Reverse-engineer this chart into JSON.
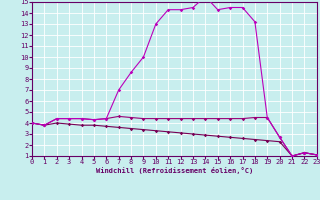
{
  "xlabel": "Windchill (Refroidissement éolien,°C)",
  "xlim": [
    0,
    23
  ],
  "ylim": [
    1,
    15
  ],
  "xticks": [
    0,
    1,
    2,
    3,
    4,
    5,
    6,
    7,
    8,
    9,
    10,
    11,
    12,
    13,
    14,
    15,
    16,
    17,
    18,
    19,
    20,
    21,
    22,
    23
  ],
  "yticks": [
    1,
    2,
    3,
    4,
    5,
    6,
    7,
    8,
    9,
    10,
    11,
    12,
    13,
    14,
    15
  ],
  "bg_color": "#c8eeee",
  "line_color1": "#bb00bb",
  "line_color2": "#990077",
  "line_color3": "#770055",
  "grid_color": "#ffffff",
  "curve1_x": [
    0,
    1,
    2,
    3,
    4,
    5,
    6,
    7,
    8,
    9,
    10,
    11,
    12,
    13,
    14,
    15,
    16,
    17,
    18,
    19,
    20,
    21,
    22,
    23
  ],
  "curve1_y": [
    4.0,
    3.8,
    4.4,
    4.4,
    4.4,
    4.3,
    4.4,
    7.0,
    8.6,
    10.0,
    13.0,
    14.3,
    14.3,
    14.5,
    15.5,
    14.3,
    14.5,
    14.5,
    13.2,
    4.5,
    2.7,
    1.0,
    1.3,
    1.1
  ],
  "curve2_x": [
    0,
    1,
    2,
    3,
    4,
    5,
    6,
    7,
    8,
    9,
    10,
    11,
    12,
    13,
    14,
    15,
    16,
    17,
    18,
    19,
    20,
    21,
    22,
    23
  ],
  "curve2_y": [
    4.0,
    3.8,
    4.4,
    4.4,
    4.4,
    4.3,
    4.4,
    4.6,
    4.5,
    4.4,
    4.4,
    4.4,
    4.4,
    4.4,
    4.4,
    4.4,
    4.4,
    4.4,
    4.5,
    4.5,
    2.7,
    1.0,
    1.3,
    1.1
  ],
  "curve3_x": [
    0,
    1,
    2,
    3,
    4,
    5,
    6,
    7,
    8,
    9,
    10,
    11,
    12,
    13,
    14,
    15,
    16,
    17,
    18,
    19,
    20,
    21,
    22,
    23
  ],
  "curve3_y": [
    4.0,
    3.8,
    4.0,
    3.9,
    3.8,
    3.8,
    3.7,
    3.6,
    3.5,
    3.4,
    3.3,
    3.2,
    3.1,
    3.0,
    2.9,
    2.8,
    2.7,
    2.6,
    2.5,
    2.4,
    2.3,
    1.0,
    1.3,
    1.1
  ],
  "spine_color": "#660066",
  "tick_color": "#660066",
  "label_color": "#660066",
  "font_size": 5
}
